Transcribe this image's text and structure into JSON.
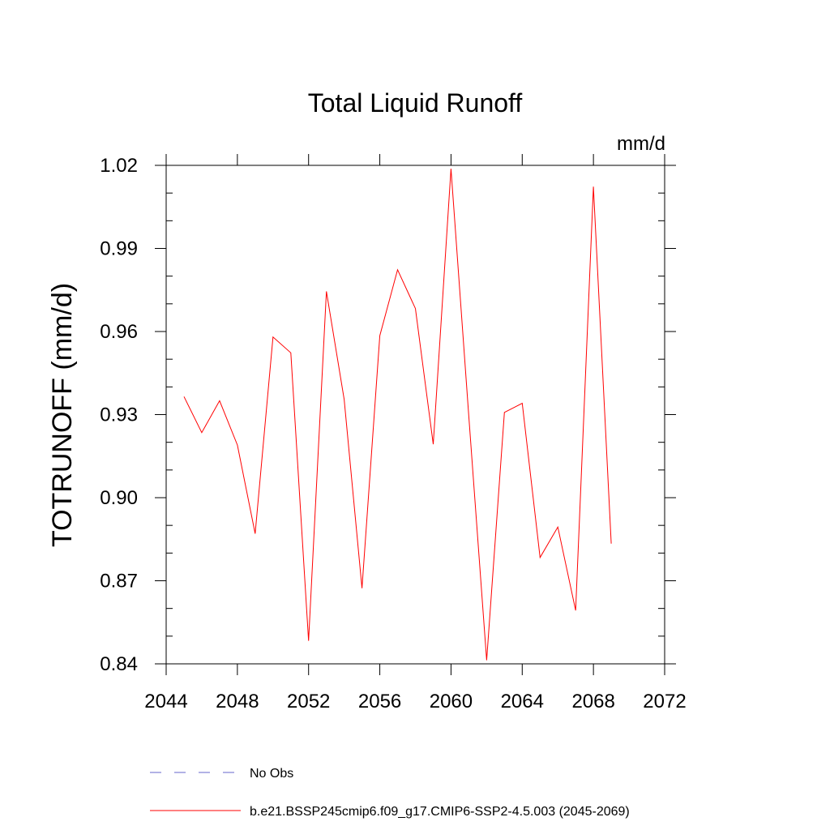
{
  "chart_data": {
    "type": "line",
    "title": "Total Liquid Runoff",
    "units_label": "mm/d",
    "ylabel": "TOTRUNOFF  (mm/d)",
    "xlabel": "",
    "xlim": [
      2044,
      2072
    ],
    "ylim": [
      0.84,
      1.02
    ],
    "x_ticks": [
      2044,
      2048,
      2052,
      2056,
      2060,
      2064,
      2068,
      2072
    ],
    "x_tick_labels": [
      "2044",
      "2048",
      "2052",
      "2056",
      "2060",
      "2064",
      "2068",
      "2072"
    ],
    "y_ticks": [
      0.84,
      0.87,
      0.9,
      0.93,
      0.96,
      0.99,
      1.02
    ],
    "y_tick_labels": [
      "0.84",
      "0.87",
      "0.90",
      "0.93",
      "0.96",
      "0.99",
      "1.02"
    ],
    "grid": false,
    "legend_position": "bottom",
    "series": [
      {
        "name": "b.e21.BSSP245cmip6.f09_g17.CMIP6-SSP2-4.5.003 (2045-2069)",
        "color": "#ff0000",
        "style": "solid",
        "x": [
          2045,
          2046,
          2047,
          2048,
          2049,
          2050,
          2051,
          2052,
          2053,
          2054,
          2055,
          2056,
          2057,
          2058,
          2059,
          2060,
          2061,
          2062,
          2063,
          2064,
          2065,
          2066,
          2067,
          2068,
          2069
        ],
        "y": [
          0.9365,
          0.9235,
          0.935,
          0.919,
          0.887,
          0.958,
          0.9523,
          0.8483,
          0.9745,
          0.9355,
          0.8673,
          0.9585,
          0.9823,
          0.9683,
          0.9193,
          1.0188,
          0.9293,
          0.8413,
          0.9308,
          0.9341,
          0.8784,
          0.8894,
          0.8593,
          1.0123,
          0.8834
        ]
      }
    ],
    "legend": [
      {
        "label": "No Obs",
        "color": "#6666cc",
        "style": "dashed"
      },
      {
        "label": "b.e21.BSSP245cmip6.f09_g17.CMIP6-SSP2-4.5.003 (2045-2069)",
        "color": "#ff0000",
        "style": "solid"
      }
    ]
  }
}
